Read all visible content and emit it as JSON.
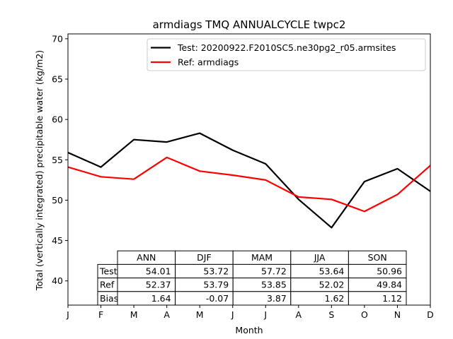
{
  "chart_data": {
    "type": "line",
    "title": "armdiags TMQ ANNUALCYCLE twpc2",
    "xlabel": "Month",
    "ylabel": "Total (vertically integrated) precipitable water (kg/m2)",
    "categories": [
      "J",
      "F",
      "M",
      "A",
      "M",
      "J",
      "J",
      "A",
      "S",
      "O",
      "N",
      "D"
    ],
    "ylim": [
      37,
      70.6
    ],
    "yticks": [
      40,
      45,
      50,
      55,
      60,
      65,
      70
    ],
    "grid": false,
    "legend_position": "top-right",
    "series": [
      {
        "name": "Test: 20200922.F2010SC5.ne30pg2_r05.armsites",
        "color": "#000000",
        "values": [
          55.9,
          54.1,
          57.5,
          57.2,
          58.3,
          56.2,
          54.5,
          50.1,
          46.6,
          52.3,
          53.9,
          51.1
        ]
      },
      {
        "name": "Ref: armdiags",
        "color": "#ff0000",
        "values": [
          54.1,
          52.9,
          52.6,
          55.3,
          53.6,
          53.1,
          52.5,
          50.4,
          50.1,
          48.6,
          50.7,
          54.3
        ]
      }
    ],
    "table": {
      "col_labels": [
        "ANN",
        "DJF",
        "MAM",
        "JJA",
        "SON"
      ],
      "row_labels": [
        "Test",
        "Ref",
        "Bias"
      ],
      "rows": [
        [
          "54.01",
          "53.72",
          "57.72",
          "53.64",
          "50.96"
        ],
        [
          "52.37",
          "53.79",
          "53.85",
          "52.02",
          "49.84"
        ],
        [
          "1.64",
          "-0.07",
          "3.87",
          "1.62",
          "1.12"
        ]
      ]
    }
  }
}
